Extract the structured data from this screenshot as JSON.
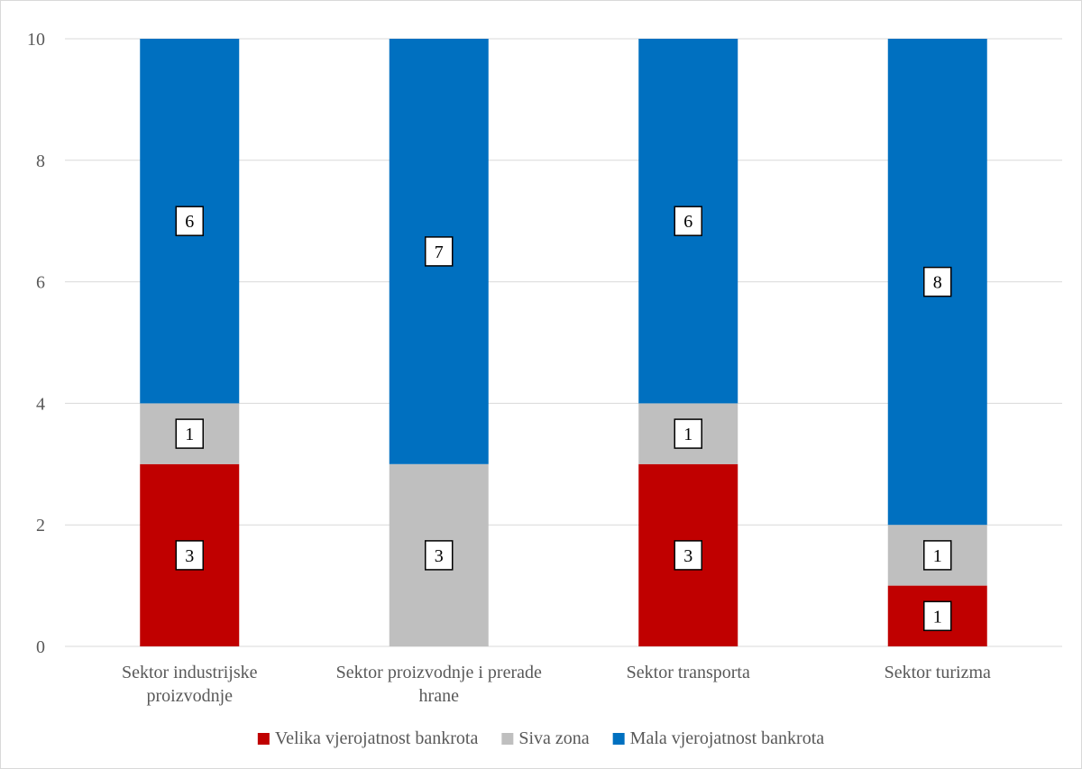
{
  "chart_data": {
    "type": "bar",
    "stacked": true,
    "title": "",
    "xlabel": "",
    "ylabel": "",
    "ylim": [
      0,
      10
    ],
    "yticks": [
      0,
      2,
      4,
      6,
      8,
      10
    ],
    "grid": true,
    "legend_position": "bottom",
    "categories": [
      [
        "Sektor industrijske",
        "proizvodnje"
      ],
      [
        "Sektor proizvodnje i prerade",
        "hrane"
      ],
      [
        "Sektor transporta"
      ],
      [
        "Sektor turizma"
      ]
    ],
    "series": [
      {
        "name": "Velika vjerojatnost bankrota",
        "color": "#c00000",
        "values": [
          3,
          0,
          3,
          1
        ]
      },
      {
        "name": "Siva zona",
        "color": "#bfbfbf",
        "values": [
          1,
          3,
          1,
          1
        ]
      },
      {
        "name": "Mala vjerojatnost bankrota",
        "color": "#0070c0",
        "values": [
          6,
          7,
          6,
          8
        ]
      }
    ]
  }
}
